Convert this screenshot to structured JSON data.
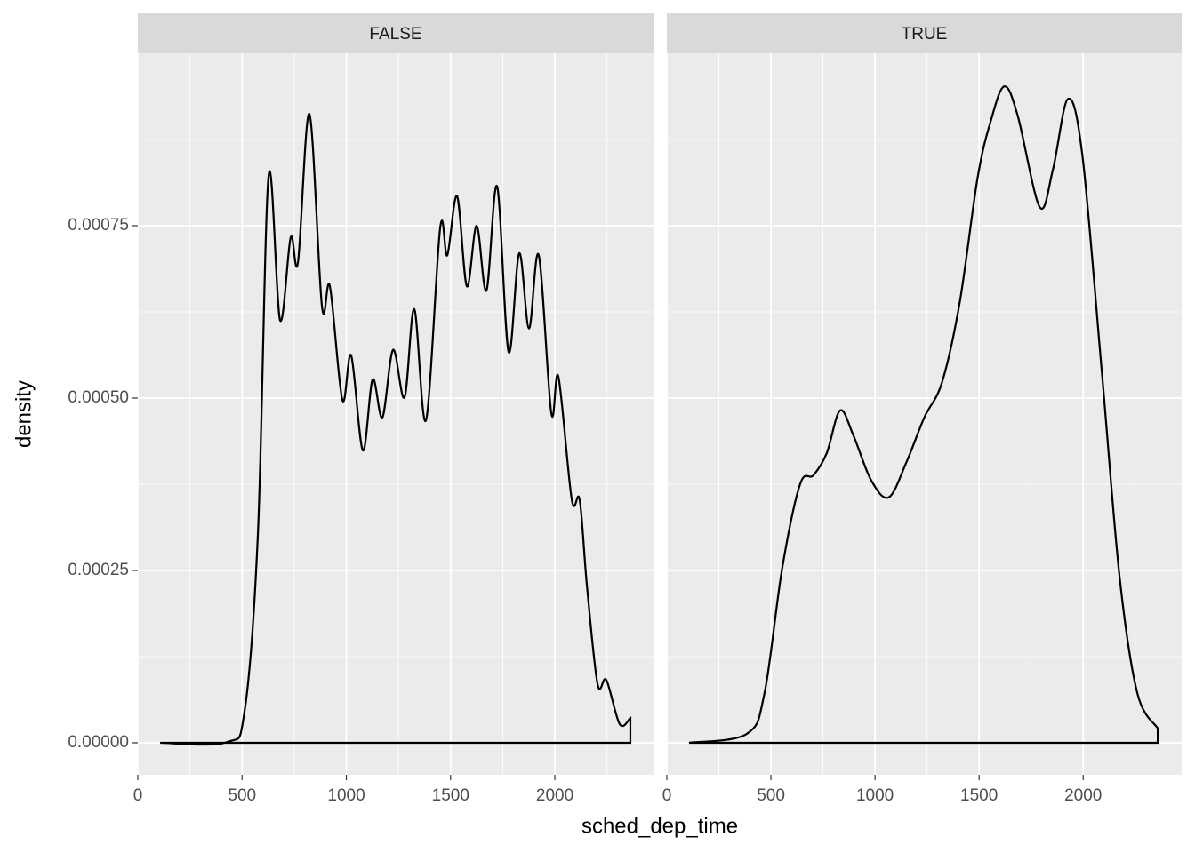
{
  "chart_data": [
    {
      "type": "line",
      "strip": "FALSE",
      "xlabel": "sched_dep_time",
      "ylabel": "density",
      "color": "#000000",
      "xlim": [
        0,
        2473
      ],
      "ylim": [
        -4.64e-05,
        0.001
      ],
      "xticks": [
        0,
        500,
        1000,
        1500,
        2000
      ],
      "minor_xticks": [
        250,
        750,
        1250,
        1750,
        2250
      ],
      "yticks": [
        {
          "value": 0,
          "label": "0.00000"
        },
        {
          "value": 0.00025,
          "label": "0.00025"
        },
        {
          "value": 0.0005,
          "label": "0.00050"
        },
        {
          "value": 0.00075,
          "label": "0.00075"
        }
      ],
      "minor_yticks": [
        0.000125,
        0.000375,
        0.000625,
        0.000875
      ],
      "grid": true,
      "x": [
        107,
        426,
        512,
        576,
        627,
        682,
        733,
        768,
        823,
        883,
        921,
        981,
        1023,
        1079,
        1126,
        1173,
        1224,
        1279,
        1326,
        1382,
        1450,
        1484,
        1531,
        1578,
        1625,
        1672,
        1723,
        1778,
        1829,
        1876,
        1923,
        1983,
        2017,
        2081,
        2119,
        2154,
        2205,
        2247,
        2311,
        2362
      ],
      "values": [
        0,
        1e-06,
        4.6e-05,
        0.000304,
        0.000822,
        0.000613,
        0.000733,
        0.000697,
        0.000912,
        0.000633,
        0.000662,
        0.000497,
        0.000562,
        0.000424,
        0.000527,
        0.000472,
        0.00057,
        0.000501,
        0.000629,
        0.000468,
        0.000747,
        0.000707,
        0.000793,
        0.000662,
        0.00075,
        0.000656,
        0.000807,
        0.000567,
        0.00071,
        0.000601,
        0.000707,
        0.000478,
        0.000531,
        0.000353,
        0.000352,
        0.000227,
        8.5e-05,
        9.1e-05,
        2.7e-05,
        3.6e-05
      ]
    },
    {
      "type": "line",
      "strip": "TRUE",
      "color": "#000000",
      "xlim": [
        0,
        2473
      ],
      "ylim": [
        -4.64e-05,
        0.001
      ],
      "xticks": [
        0,
        500,
        1000,
        1500,
        2000
      ],
      "minor_xticks": [
        250,
        750,
        1250,
        1750,
        2250
      ],
      "yticks": [
        0,
        0.00025,
        0.0005,
        0.00075
      ],
      "minor_yticks": [
        0.000125,
        0.000375,
        0.000625,
        0.000875
      ],
      "grid": true,
      "x": [
        107,
        384,
        469,
        554,
        640,
        704,
        768,
        832,
        896,
        981,
        1066,
        1151,
        1237,
        1322,
        1407,
        1493,
        1557,
        1621,
        1685,
        1791,
        1855,
        1927,
        1996,
        2090,
        2175,
        2260,
        2358
      ],
      "values": [
        0,
        1.3e-05,
        7.2e-05,
        0.000253,
        0.000375,
        0.000388,
        0.00042,
        0.000482,
        0.000446,
        0.000381,
        0.000356,
        0.000407,
        0.000472,
        0.000523,
        0.000639,
        0.00082,
        0.000903,
        0.000952,
        0.00091,
        0.000777,
        0.000832,
        0.000934,
        0.000852,
        0.000536,
        0.00024,
        7.2e-05,
        2.1e-05
      ]
    }
  ]
}
